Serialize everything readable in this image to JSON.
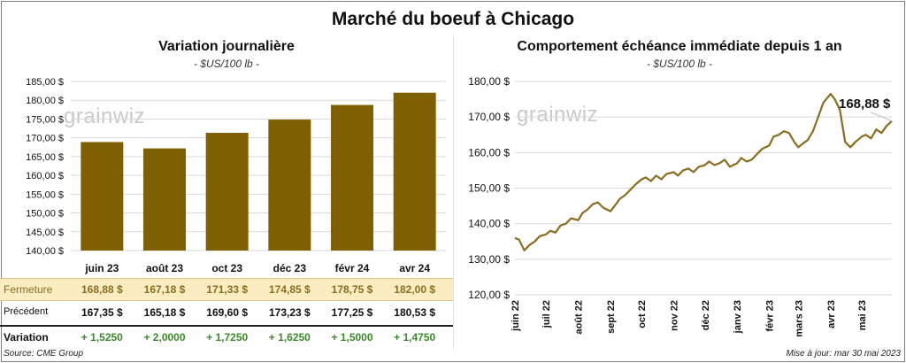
{
  "title": "Marché du boeuf à Chicago",
  "left": {
    "title": "Variation journalière",
    "unit": "- $US/100 lb -",
    "watermark_a": "grain",
    "watermark_b": "wiz",
    "row_labels": {
      "close": "Fermeture",
      "previous": "Précédent",
      "change": "Variation"
    },
    "closes": [
      "168,88",
      "167,18",
      "171,33",
      "174,85",
      "178,75",
      "182,00"
    ],
    "previous": [
      "167,35",
      "165,18",
      "169,60",
      "173,23",
      "177,25",
      "180,53"
    ],
    "changes": [
      "+ 1,5250",
      "+ 2,0000",
      "+ 1,7250",
      "+ 1,6250",
      "+ 1,5000",
      "+ 1,4750"
    ],
    "currency": "$"
  },
  "right": {
    "title": "Comportement  échéance immédiate depuis 1 an",
    "unit": "- $US/100 lb -",
    "watermark_a": "grain",
    "watermark_b": "wiz",
    "last_value": "168,88 $"
  },
  "footer": {
    "source": "Source: CME Group",
    "updated": "Mise à jour: mar 30 mai 2023"
  },
  "colors": {
    "bar": "#7f6000",
    "line": "#8a6d1f",
    "grid": "#d9d9d9",
    "close_row_bg": "#fbecc2",
    "change_text": "#3a8a2a"
  },
  "chart_data": [
    {
      "type": "bar",
      "title": "Variation journalière",
      "ylabel": "$US/100 lb",
      "categories": [
        "juin 23",
        "août 23",
        "oct 23",
        "déc 23",
        "févr 24",
        "avr 24"
      ],
      "values": [
        168.88,
        167.18,
        171.33,
        174.85,
        178.75,
        182.0
      ],
      "ylim": [
        140,
        185
      ],
      "yticks": [
        "140,00 $",
        "145,00 $",
        "150,00 $",
        "155,00 $",
        "160,00 $",
        "165,00 $",
        "170,00 $",
        "175,00 $",
        "180,00 $",
        "185,00 $"
      ],
      "grid": true
    },
    {
      "type": "line",
      "title": "Comportement  échéance immédiate depuis 1 an",
      "ylabel": "$US/100 lb",
      "ylim": [
        120,
        180
      ],
      "yticks": [
        "120,00 $",
        "130,00 $",
        "140,00 $",
        "150,00 $",
        "160,00 $",
        "170,00 $",
        "180,00 $"
      ],
      "xticks": [
        "juin 22",
        "juil 22",
        "août 22",
        "sept 22",
        "oct 22",
        "nov 22",
        "déc 22",
        "janv 23",
        "févr 23",
        "mars 23",
        "avr 23",
        "mai 23"
      ],
      "grid": true,
      "series": [
        {
          "x": [
            "2022-06-01",
            "2022-06-05",
            "2022-06-10",
            "2022-06-15",
            "2022-06-20",
            "2022-06-25",
            "2022-07-01",
            "2022-07-05",
            "2022-07-10",
            "2022-07-15",
            "2022-07-20",
            "2022-07-25",
            "2022-08-01",
            "2022-08-05",
            "2022-08-10",
            "2022-08-15",
            "2022-08-20",
            "2022-08-25",
            "2022-09-01",
            "2022-09-05",
            "2022-09-10",
            "2022-09-15",
            "2022-09-20",
            "2022-09-25",
            "2022-10-01",
            "2022-10-05",
            "2022-10-10",
            "2022-10-15",
            "2022-10-20",
            "2022-10-25",
            "2022-11-01",
            "2022-11-05",
            "2022-11-10",
            "2022-11-15",
            "2022-11-20",
            "2022-11-25",
            "2022-12-01",
            "2022-12-05",
            "2022-12-10",
            "2022-12-15",
            "2022-12-20",
            "2022-12-25",
            "2023-01-01",
            "2023-01-05",
            "2023-01-10",
            "2023-01-15",
            "2023-01-20",
            "2023-01-25",
            "2023-02-01",
            "2023-02-05",
            "2023-02-10",
            "2023-02-15",
            "2023-02-20",
            "2023-02-25",
            "2023-03-01",
            "2023-03-05",
            "2023-03-10",
            "2023-03-15",
            "2023-03-20",
            "2023-03-25",
            "2023-04-01",
            "2023-04-05",
            "2023-04-10",
            "2023-04-15",
            "2023-04-20",
            "2023-04-25",
            "2023-05-01",
            "2023-05-05",
            "2023-05-10",
            "2023-05-15",
            "2023-05-20",
            "2023-05-25",
            "2023-05-30"
          ],
          "values": [
            136.0,
            135.5,
            132.5,
            134.0,
            135.0,
            136.5,
            137.0,
            138.0,
            137.5,
            139.5,
            140.0,
            141.5,
            141.0,
            143.0,
            144.0,
            145.5,
            146.0,
            144.5,
            143.5,
            145.0,
            147.0,
            148.0,
            149.5,
            151.0,
            152.5,
            153.0,
            152.0,
            153.5,
            152.5,
            154.0,
            154.5,
            153.5,
            155.0,
            155.5,
            154.5,
            156.0,
            156.5,
            157.5,
            156.5,
            157.0,
            158.0,
            156.0,
            157.0,
            158.5,
            157.5,
            158.0,
            159.5,
            161.0,
            162.0,
            164.5,
            165.0,
            166.0,
            165.5,
            163.0,
            161.5,
            162.5,
            163.5,
            166.0,
            170.0,
            174.0,
            176.5,
            175.0,
            172.0,
            163.0,
            161.5,
            163.0,
            164.5,
            165.0,
            164.0,
            166.5,
            165.5,
            167.5,
            168.88
          ]
        }
      ]
    }
  ]
}
